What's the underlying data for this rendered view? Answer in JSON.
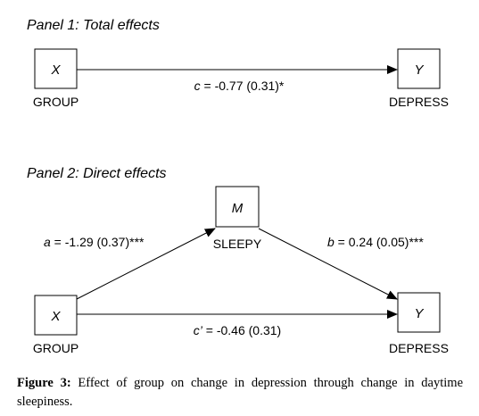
{
  "panel1": {
    "title": "Panel 1: Total effects",
    "x_node": {
      "symbol": "X",
      "label": "GROUP"
    },
    "y_node": {
      "symbol": "Y",
      "label": "DEPRESS"
    },
    "path_c": {
      "symbol": "c",
      "text": " = -0.77 (0.31)*"
    }
  },
  "panel2": {
    "title": "Panel 2: Direct effects",
    "x_node": {
      "symbol": "X",
      "label": "GROUP"
    },
    "m_node": {
      "symbol": "M",
      "label": "SLEEPY"
    },
    "y_node": {
      "symbol": "Y",
      "label": "DEPRESS"
    },
    "path_a": {
      "symbol": "a",
      "text": " = -1.29 (0.37)***"
    },
    "path_b": {
      "symbol": "b",
      "text": " = 0.24 (0.05)***"
    },
    "path_c_prime": {
      "symbol": "c’",
      "text": " = -0.46 (0.31)"
    }
  },
  "caption": {
    "label": "Figure 3:",
    "text": " Effect of group on change in depression through change in daytime sleepiness."
  }
}
